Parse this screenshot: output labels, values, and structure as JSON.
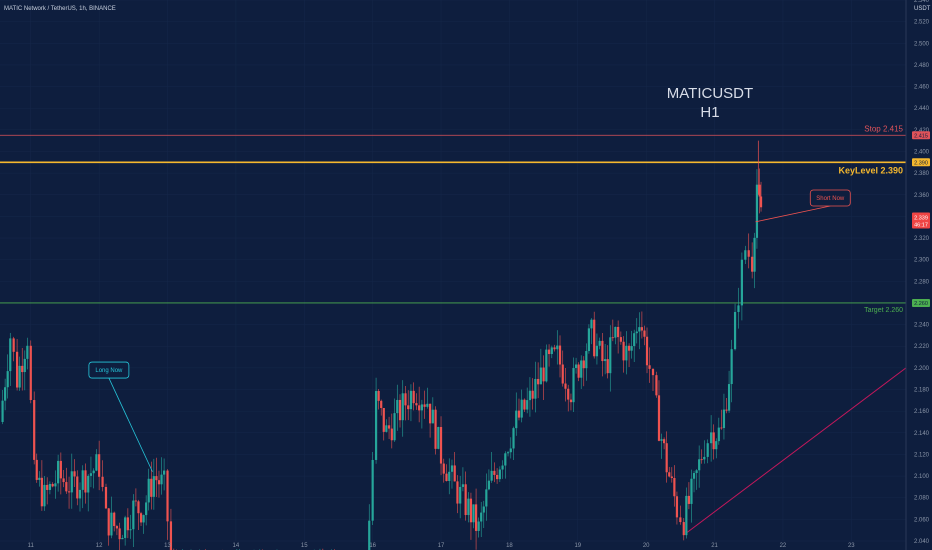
{
  "header": {
    "symbol_line": "MATIC Network / TetherUS, 1h, BINANCE"
  },
  "chart_data": {
    "type": "candlestick",
    "title_line1": "MATICUSDT",
    "title_line2": "H1",
    "currency_label": "USDT",
    "ylim": [
      2.04,
      2.54
    ],
    "y_ticks": [
      2.54,
      2.52,
      2.5,
      2.48,
      2.46,
      2.44,
      2.42,
      2.4,
      2.38,
      2.36,
      2.34,
      2.32,
      2.3,
      2.28,
      2.24,
      2.22,
      2.2,
      2.18,
      2.16,
      2.14,
      2.12,
      2.1,
      2.08,
      2.06,
      2.04
    ],
    "y_tick_labels": [
      "2.540",
      "2.520",
      "2.500",
      "2.480",
      "2.460",
      "2.440",
      "2.420",
      "2.400",
      "2.380",
      "2.360",
      "2.340",
      "2.320",
      "2.300",
      "2.280",
      "2.240",
      "2.220",
      "2.200",
      "2.180",
      "2.160",
      "2.140",
      "2.120",
      "2.100",
      "2.080",
      "2.060",
      "2.040"
    ],
    "x_ticks": [
      {
        "label": "11",
        "day": 11
      },
      {
        "label": "12",
        "day": 12
      },
      {
        "label": "13",
        "day": 13
      },
      {
        "label": "14",
        "day": 14
      },
      {
        "label": "15",
        "day": 15
      },
      {
        "label": "16",
        "day": 16
      },
      {
        "label": "17",
        "day": 17
      },
      {
        "label": "18",
        "day": 18
      },
      {
        "label": "19",
        "day": 19
      },
      {
        "label": "20",
        "day": 20
      },
      {
        "label": "21",
        "day": 21
      },
      {
        "label": "22",
        "day": 22
      },
      {
        "label": "23",
        "day": 23
      }
    ],
    "x_range_days": [
      10.55,
      23.8
    ],
    "levels": [
      {
        "name": "stop",
        "value": 2.415,
        "label": "Stop 2.415",
        "badge": "2.415",
        "color": "#e0535a"
      },
      {
        "name": "keylevel",
        "value": 2.39,
        "label": "KeyLevel 2.390",
        "badge": "2.390",
        "color": "#f5b82e"
      },
      {
        "name": "target",
        "value": 2.26,
        "label": "Target 2.260",
        "badge": "2.260",
        "color": "#4caf50"
      }
    ],
    "last_price": {
      "value": 2.339,
      "label": "2.339",
      "countdown": "46:17",
      "color": "#ef4444"
    },
    "annotations": [
      {
        "text": "Long Now",
        "color": "#26c6da",
        "box_day": 11.85,
        "box_price": 2.198,
        "tip_day": 12.78,
        "tip_price": 2.104
      },
      {
        "text": "Short Now",
        "color": "#ef5350",
        "box_day": 22.4,
        "box_price": 2.357,
        "tip_day": 21.6,
        "tip_price": 2.335
      }
    ],
    "trendline": {
      "color": "#c2185b",
      "start": {
        "day": 20.6,
        "price": 2.048
      },
      "end": {
        "day": 23.8,
        "price": 2.2
      }
    },
    "up_color": "#26a69a",
    "down_color": "#ef5350",
    "candles": {
      "seed": 7,
      "hours_per_day": 24,
      "first_day": 10.55,
      "path": [
        [
          10.55,
          2.15
        ],
        [
          10.7,
          2.23
        ],
        [
          10.8,
          2.19
        ],
        [
          10.95,
          2.23
        ],
        [
          11.05,
          2.1
        ],
        [
          11.2,
          2.08
        ],
        [
          11.4,
          2.1
        ],
        [
          11.6,
          2.09
        ],
        [
          11.8,
          2.1
        ],
        [
          12.0,
          2.11
        ],
        [
          12.1,
          2.06
        ],
        [
          12.3,
          2.05
        ],
        [
          12.5,
          2.07
        ],
        [
          12.65,
          2.07
        ],
        [
          12.8,
          2.1
        ],
        [
          12.95,
          2.09
        ],
        [
          13.05,
          2.03
        ],
        [
          15.9,
          2.03
        ],
        [
          15.95,
          2.06
        ],
        [
          16.05,
          2.17
        ],
        [
          16.2,
          2.14
        ],
        [
          16.4,
          2.16
        ],
        [
          16.6,
          2.18
        ],
        [
          16.8,
          2.17
        ],
        [
          17.0,
          2.12
        ],
        [
          17.2,
          2.09
        ],
        [
          17.4,
          2.07
        ],
        [
          17.55,
          2.05
        ],
        [
          17.7,
          2.09
        ],
        [
          17.9,
          2.12
        ],
        [
          18.1,
          2.15
        ],
        [
          18.3,
          2.17
        ],
        [
          18.5,
          2.2
        ],
        [
          18.7,
          2.21
        ],
        [
          18.9,
          2.18
        ],
        [
          19.05,
          2.21
        ],
        [
          19.2,
          2.23
        ],
        [
          19.4,
          2.2
        ],
        [
          19.55,
          2.23
        ],
        [
          19.75,
          2.21
        ],
        [
          19.9,
          2.25
        ],
        [
          20.05,
          2.2
        ],
        [
          20.15,
          2.16
        ],
        [
          20.3,
          2.11
        ],
        [
          20.45,
          2.07
        ],
        [
          20.55,
          2.06
        ],
        [
          20.7,
          2.09
        ],
        [
          20.85,
          2.13
        ],
        [
          20.95,
          2.14
        ],
        [
          21.1,
          2.14
        ],
        [
          21.25,
          2.21
        ],
        [
          21.35,
          2.27
        ],
        [
          21.45,
          2.31
        ],
        [
          21.55,
          2.3
        ],
        [
          21.62,
          2.37
        ],
        [
          21.66,
          2.345
        ],
        [
          21.68,
          2.339
        ]
      ]
    }
  }
}
